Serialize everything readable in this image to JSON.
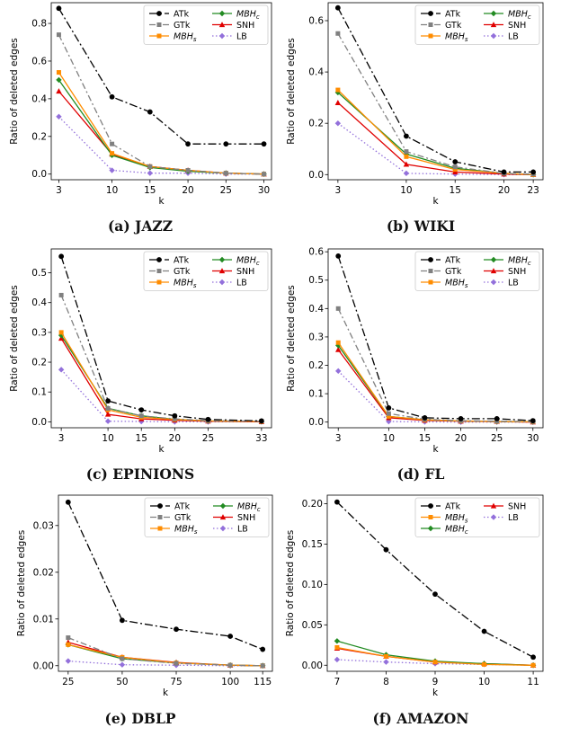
{
  "series_styles": {
    "ATk": {
      "color": "#000000",
      "dash": "9,3,2,3",
      "marker": "circle"
    },
    "GTk": {
      "color": "#808080",
      "dash": "7,3,2,3",
      "marker": "square"
    },
    "MBHs": {
      "color": "#ff8c00",
      "dash": "",
      "marker": "square"
    },
    "MBHc": {
      "color": "#228b22",
      "dash": "",
      "marker": "diamond"
    },
    "SNH": {
      "color": "#e00000",
      "dash": "",
      "marker": "triangle"
    },
    "LB": {
      "color": "#9370db",
      "dash": "1.5,2.5",
      "marker": "diamond"
    }
  },
  "chart_data": [
    {
      "type": "line",
      "caption": "(a) JAZZ",
      "xlabel": "k",
      "ylabel": "Ratio of deleted edges",
      "x": [
        3,
        10,
        15,
        20,
        25,
        30
      ],
      "xticks": [
        "3",
        "10",
        "15",
        "20",
        "25",
        "30"
      ],
      "xlim": [
        2,
        31
      ],
      "ylim": [
        -0.03,
        0.91
      ],
      "yticks": [
        0.0,
        0.2,
        0.4,
        0.6,
        0.8
      ],
      "ytick_labels": [
        "0.0",
        "0.2",
        "0.4",
        "0.6",
        "0.8"
      ],
      "legend": "top-right",
      "legend_order": [
        "ATk",
        "GTk",
        "MBHs",
        "MBHc",
        "SNH",
        "LB"
      ],
      "series": [
        {
          "name": "ATk",
          "style": "ATk",
          "values": [
            0.88,
            0.41,
            0.33,
            0.16,
            0.16,
            0.16
          ]
        },
        {
          "name": "GTk",
          "style": "GTk",
          "values": [
            0.74,
            0.16,
            0.04,
            0.02,
            0.005,
            0.0
          ]
        },
        {
          "name": "MBHs",
          "style": "MBHs",
          "values": [
            0.54,
            0.11,
            0.04,
            0.02,
            0.005,
            0.0
          ]
        },
        {
          "name": "MBHc",
          "style": "MBHc",
          "values": [
            0.5,
            0.1,
            0.035,
            0.015,
            0.005,
            0.0
          ]
        },
        {
          "name": "SNH",
          "style": "SNH",
          "values": [
            0.44,
            0.105,
            0.04,
            0.02,
            0.005,
            0.0
          ]
        },
        {
          "name": "LB",
          "style": "LB",
          "values": [
            0.305,
            0.02,
            0.005,
            0.005,
            0.0,
            0.0
          ]
        }
      ]
    },
    {
      "type": "line",
      "caption": "(b) WIKI",
      "xlabel": "k",
      "ylabel": "Ratio of deleted edges",
      "x": [
        3,
        10,
        15,
        20,
        23
      ],
      "xticks": [
        "3",
        "10",
        "15",
        "20",
        "23"
      ],
      "xlim": [
        2,
        24
      ],
      "ylim": [
        -0.02,
        0.67
      ],
      "yticks": [
        0.0,
        0.2,
        0.4,
        0.6
      ],
      "ytick_labels": [
        "0.0",
        "0.2",
        "0.4",
        "0.6"
      ],
      "legend": "top-right",
      "legend_order": [
        "ATk",
        "GTk",
        "MBHs",
        "MBHc",
        "SNH",
        "LB"
      ],
      "series": [
        {
          "name": "ATk",
          "style": "ATk",
          "values": [
            0.65,
            0.15,
            0.05,
            0.01,
            0.01
          ]
        },
        {
          "name": "GTk",
          "style": "GTk",
          "values": [
            0.55,
            0.09,
            0.03,
            0.005,
            0.002
          ]
        },
        {
          "name": "MBHs",
          "style": "MBHs",
          "values": [
            0.33,
            0.07,
            0.02,
            0.005,
            0.0
          ]
        },
        {
          "name": "MBHc",
          "style": "MBHc",
          "values": [
            0.32,
            0.08,
            0.025,
            0.005,
            0.0
          ]
        },
        {
          "name": "SNH",
          "style": "SNH",
          "values": [
            0.28,
            0.04,
            0.01,
            0.002,
            0.0
          ]
        },
        {
          "name": "LB",
          "style": "LB",
          "values": [
            0.2,
            0.005,
            0.002,
            0.0,
            0.0
          ]
        }
      ]
    },
    {
      "type": "line",
      "caption": "(c) EPINIONS",
      "xlabel": "k",
      "ylabel": "Ratio of deleted edges",
      "x": [
        3,
        10,
        15,
        20,
        25,
        33
      ],
      "xticks": [
        "3",
        "10",
        "15",
        "20",
        "25",
        "33"
      ],
      "xlim": [
        1.5,
        34.5
      ],
      "ylim": [
        -0.02,
        0.58
      ],
      "yticks": [
        0.0,
        0.1,
        0.2,
        0.3,
        0.4,
        0.5
      ],
      "ytick_labels": [
        "0.0",
        "0.1",
        "0.2",
        "0.3",
        "0.4",
        "0.5"
      ],
      "legend": "top-right",
      "legend_order": [
        "ATk",
        "GTk",
        "MBHs",
        "MBHc",
        "SNH",
        "LB"
      ],
      "series": [
        {
          "name": "ATk",
          "style": "ATk",
          "values": [
            0.555,
            0.07,
            0.04,
            0.02,
            0.008,
            0.003
          ]
        },
        {
          "name": "GTk",
          "style": "GTk",
          "values": [
            0.425,
            0.045,
            0.02,
            0.01,
            0.004,
            0.002
          ]
        },
        {
          "name": "MBHs",
          "style": "MBHs",
          "values": [
            0.3,
            0.04,
            0.015,
            0.008,
            0.003,
            0.001
          ]
        },
        {
          "name": "MBHc",
          "style": "MBHc",
          "values": [
            0.29,
            0.045,
            0.02,
            0.008,
            0.003,
            0.001
          ]
        },
        {
          "name": "SNH",
          "style": "SNH",
          "values": [
            0.28,
            0.025,
            0.01,
            0.005,
            0.002,
            0.0
          ]
        },
        {
          "name": "LB",
          "style": "LB",
          "values": [
            0.175,
            0.002,
            0.001,
            0.0,
            0.0,
            0.0
          ]
        }
      ]
    },
    {
      "type": "line",
      "caption": "(d) FL",
      "xlabel": "k",
      "ylabel": "Ratio of deleted edges",
      "x": [
        3,
        10,
        15,
        20,
        25,
        30
      ],
      "xticks": [
        "3",
        "10",
        "15",
        "20",
        "25",
        "30"
      ],
      "xlim": [
        1.6,
        31.4
      ],
      "ylim": [
        -0.02,
        0.61
      ],
      "yticks": [
        0.0,
        0.1,
        0.2,
        0.3,
        0.4,
        0.5,
        0.6
      ],
      "ytick_labels": [
        "0.0",
        "0.1",
        "0.2",
        "0.3",
        "0.4",
        "0.5",
        "0.6"
      ],
      "legend": "top-right",
      "legend_order": [
        "ATk",
        "GTk",
        "MBHs",
        "MBHc",
        "SNH",
        "LB"
      ],
      "series": [
        {
          "name": "ATk",
          "style": "ATk",
          "values": [
            0.585,
            0.05,
            0.015,
            0.012,
            0.012,
            0.005
          ]
        },
        {
          "name": "GTk",
          "style": "GTk",
          "values": [
            0.4,
            0.03,
            0.01,
            0.005,
            0.003,
            0.002
          ]
        },
        {
          "name": "MBHs",
          "style": "MBHs",
          "values": [
            0.28,
            0.02,
            0.008,
            0.004,
            0.002,
            0.001
          ]
        },
        {
          "name": "MBHc",
          "style": "MBHc",
          "values": [
            0.27,
            0.02,
            0.008,
            0.004,
            0.002,
            0.001
          ]
        },
        {
          "name": "SNH",
          "style": "SNH",
          "values": [
            0.255,
            0.015,
            0.006,
            0.003,
            0.002,
            0.0
          ]
        },
        {
          "name": "LB",
          "style": "LB",
          "values": [
            0.18,
            0.002,
            0.001,
            0.0,
            0.0,
            0.0
          ]
        }
      ]
    },
    {
      "type": "line",
      "caption": "(e) DBLP",
      "xlabel": "k",
      "ylabel": "Ratio of deleted edges",
      "x": [
        25,
        50,
        75,
        100,
        115
      ],
      "xticks": [
        "25",
        "50",
        "75",
        "100",
        "115"
      ],
      "xlim": [
        20.5,
        119.5
      ],
      "ylim": [
        -0.0012,
        0.0365
      ],
      "yticks": [
        0.0,
        0.01,
        0.02,
        0.03
      ],
      "ytick_labels": [
        "0.00",
        "0.01",
        "0.02",
        "0.03"
      ],
      "legend": "top-right",
      "legend_order": [
        "ATk",
        "GTk",
        "MBHs",
        "MBHc",
        "SNH",
        "LB"
      ],
      "series": [
        {
          "name": "ATk",
          "style": "ATk",
          "values": [
            0.035,
            0.0097,
            0.0078,
            0.0063,
            0.0035
          ]
        },
        {
          "name": "GTk",
          "style": "GTk",
          "values": [
            0.006,
            0.0015,
            0.0005,
            0.0001,
            0.0
          ]
        },
        {
          "name": "MBHs",
          "style": "MBHs",
          "values": [
            0.0045,
            0.0018,
            0.0006,
            0.0001,
            0.0
          ]
        },
        {
          "name": "MBHc",
          "style": "MBHc",
          "values": [
            0.0045,
            0.0015,
            0.0006,
            0.0001,
            0.0
          ]
        },
        {
          "name": "SNH",
          "style": "SNH",
          "values": [
            0.005,
            0.0018,
            0.0007,
            0.0001,
            0.0
          ]
        },
        {
          "name": "LB",
          "style": "LB",
          "values": [
            0.001,
            0.0002,
            0.0001,
            0.0,
            0.0
          ]
        }
      ]
    },
    {
      "type": "line",
      "caption": "(f) AMAZON",
      "xlabel": "k",
      "ylabel": "Ratio of deleted edges",
      "x": [
        7,
        8,
        9,
        10,
        11
      ],
      "xticks": [
        "7",
        "8",
        "9",
        "10",
        "11"
      ],
      "xlim": [
        6.8,
        11.2
      ],
      "ylim": [
        -0.0075,
        0.2105
      ],
      "yticks": [
        0.0,
        0.05,
        0.1,
        0.15,
        0.2
      ],
      "ytick_labels": [
        "0.00",
        "0.05",
        "0.10",
        "0.15",
        "0.20"
      ],
      "legend": "top-right",
      "legend_order": [
        "ATk",
        "MBHs",
        "MBHc",
        "SNH",
        "LB"
      ],
      "series": [
        {
          "name": "ATk",
          "style": "ATk",
          "values": [
            0.202,
            0.143,
            0.088,
            0.042,
            0.01
          ]
        },
        {
          "name": "MBHs",
          "style": "MBHs",
          "values": [
            0.022,
            0.011,
            0.004,
            0.001,
            0.0
          ]
        },
        {
          "name": "MBHc",
          "style": "MBHc",
          "values": [
            0.03,
            0.013,
            0.005,
            0.002,
            0.0
          ]
        },
        {
          "name": "SNH",
          "style": "SNH",
          "values": [
            0.021,
            0.011,
            0.004,
            0.002,
            0.0
          ]
        },
        {
          "name": "LB",
          "style": "LB",
          "values": [
            0.007,
            0.004,
            0.002,
            0.001,
            0.0
          ]
        }
      ]
    }
  ]
}
